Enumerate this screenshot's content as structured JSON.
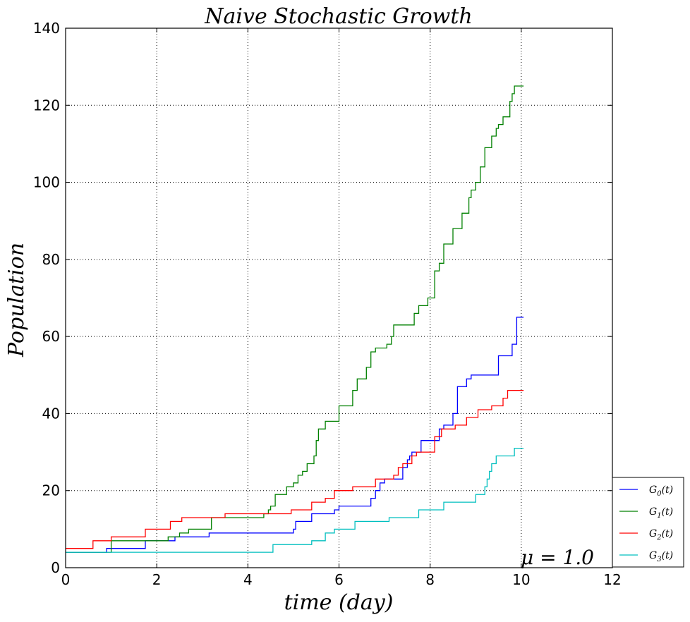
{
  "chart_data": {
    "type": "line",
    "step": true,
    "title": "Naive Stochastic Growth",
    "xlabel": "time (day)",
    "ylabel": "Population",
    "annotation": "μ = 1.0",
    "xlim": [
      0,
      12
    ],
    "ylim": [
      0,
      140
    ],
    "xticks": [
      0,
      2,
      4,
      6,
      8,
      10,
      12
    ],
    "yticks": [
      0,
      20,
      40,
      60,
      80,
      100,
      120,
      140
    ],
    "grid": true,
    "legend_position": "bottom-right, outside plot",
    "series": [
      {
        "name": "G0(t)",
        "color": "#0000ff",
        "x": [
          0,
          0.9,
          1.75,
          2.3,
          2.4,
          3.15,
          4.95,
          5.0,
          5.05,
          5.4,
          5.55,
          5.9,
          6.0,
          6.5,
          6.7,
          6.8,
          6.9,
          7.0,
          7.4,
          7.5,
          7.55,
          7.6,
          7.8,
          8.1,
          8.2,
          8.3,
          8.5,
          8.6,
          8.8,
          8.9,
          9.5,
          9.8,
          9.9,
          10.05
        ],
        "y": [
          4,
          5,
          7,
          7,
          8,
          9,
          9,
          10,
          12,
          14,
          14,
          15,
          16,
          16,
          18,
          20,
          22,
          23,
          26,
          28,
          29,
          30,
          33,
          33,
          36,
          37,
          40,
          47,
          49,
          50,
          55,
          58,
          65,
          65
        ]
      },
      {
        "name": "G1(t)",
        "color": "#008000",
        "x": [
          0,
          1.0,
          2.25,
          2.5,
          2.7,
          3.2,
          4.3,
          4.35,
          4.45,
          4.5,
          4.6,
          4.85,
          5.0,
          5.1,
          5.2,
          5.3,
          5.45,
          5.5,
          5.55,
          5.7,
          5.95,
          6.0,
          6.3,
          6.4,
          6.6,
          6.7,
          6.8,
          7.05,
          7.15,
          7.2,
          7.45,
          7.65,
          7.75,
          7.95,
          8.1,
          8.2,
          8.3,
          8.5,
          8.7,
          8.85,
          8.9,
          9.0,
          9.1,
          9.2,
          9.35,
          9.45,
          9.5,
          9.6,
          9.75,
          9.8,
          9.85,
          10.05
        ],
        "y": [
          4,
          7,
          8,
          9,
          10,
          13,
          13,
          14,
          15,
          16,
          19,
          21,
          22,
          24,
          25,
          27,
          29,
          33,
          36,
          38,
          38,
          42,
          46,
          49,
          52,
          56,
          57,
          58,
          60,
          63,
          63,
          66,
          68,
          70,
          77,
          79,
          84,
          88,
          92,
          96,
          98,
          100,
          104,
          109,
          112,
          114,
          115,
          117,
          121,
          123,
          125,
          125
        ]
      },
      {
        "name": "G2(t)",
        "color": "#ff0000",
        "x": [
          0,
          0.6,
          1.0,
          1.75,
          2.3,
          2.55,
          3.5,
          4.3,
          4.95,
          5.4,
          5.7,
          5.9,
          6.3,
          6.8,
          7.2,
          7.3,
          7.4,
          7.6,
          7.7,
          8.1,
          8.25,
          8.55,
          8.8,
          9.05,
          9.35,
          9.6,
          9.7,
          10.05
        ],
        "y": [
          5,
          7,
          8,
          10,
          12,
          13,
          14,
          14,
          15,
          17,
          18,
          20,
          21,
          23,
          24,
          26,
          27,
          29,
          30,
          34,
          36,
          37,
          39,
          41,
          42,
          44,
          46,
          46
        ]
      },
      {
        "name": "G3(t)",
        "color": "#00bfbf",
        "x": [
          0,
          4.5,
          4.55,
          5.4,
          5.7,
          5.9,
          6.0,
          6.35,
          7.0,
          7.1,
          7.75,
          8.3,
          8.8,
          9.0,
          9.2,
          9.25,
          9.3,
          9.35,
          9.45,
          9.55,
          9.85,
          10.05
        ],
        "y": [
          4,
          4,
          6,
          7,
          9,
          10,
          10,
          12,
          12,
          13,
          15,
          17,
          17,
          19,
          21,
          23,
          25,
          27,
          29,
          29,
          31,
          31
        ]
      }
    ]
  }
}
